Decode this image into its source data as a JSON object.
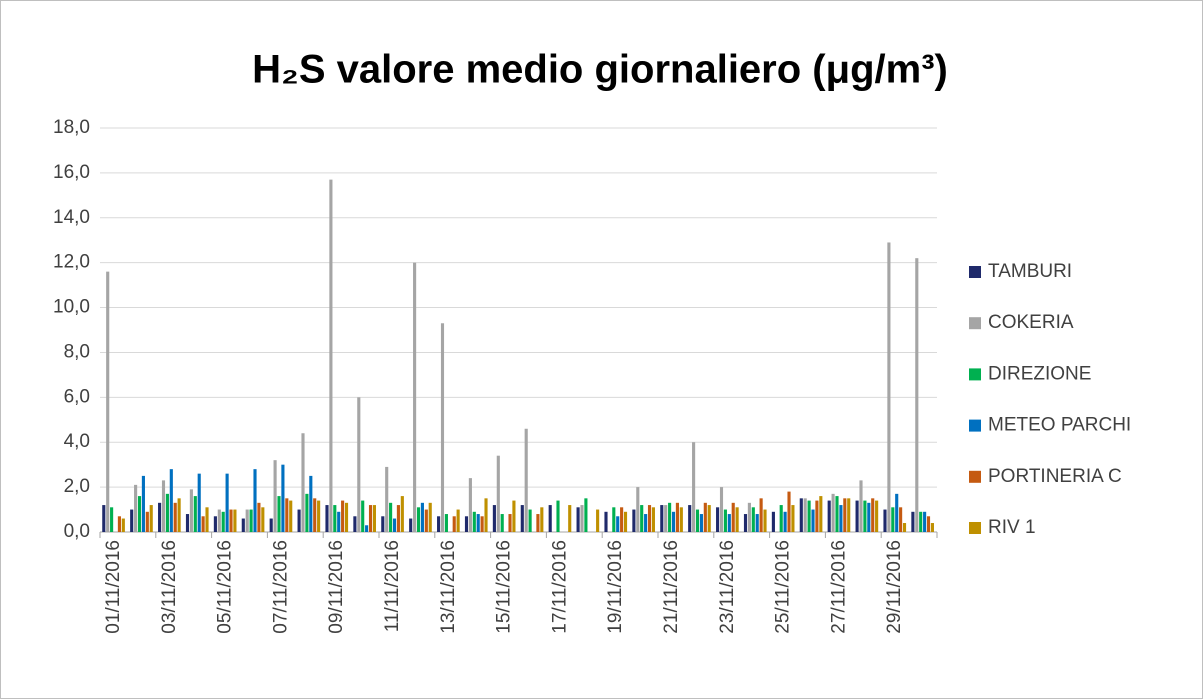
{
  "chart_data": {
    "type": "bar",
    "title": "H₂S valore medio giornaliero (μg/m³)",
    "categories": [
      "01/11/2016",
      null,
      "03/11/2016",
      null,
      "05/11/2016",
      null,
      "07/11/2016",
      null,
      "09/11/2016",
      null,
      "11/11/2016",
      null,
      "13/11/2016",
      null,
      "15/11/2016",
      null,
      "17/11/2016",
      null,
      "19/11/2016",
      null,
      "21/11/2016",
      null,
      "23/11/2016",
      null,
      "25/11/2016",
      null,
      "27/11/2016",
      null,
      "29/11/2016",
      null
    ],
    "series": [
      {
        "name": "TAMBURI",
        "color": "#1f2a6b",
        "values": [
          1.2,
          1.0,
          1.3,
          0.8,
          0.7,
          0.6,
          0.6,
          1.0,
          1.2,
          0.7,
          0.7,
          0.6,
          0.7,
          0.7,
          1.2,
          1.2,
          1.2,
          1.1,
          0.9,
          1.0,
          1.2,
          1.2,
          1.1,
          0.8,
          0.9,
          1.5,
          1.4,
          1.4,
          1.0,
          0.9
        ]
      },
      {
        "name": "COKERIA",
        "color": "#a5a5a5",
        "values": [
          11.6,
          2.1,
          2.3,
          1.9,
          1.0,
          1.0,
          3.2,
          4.4,
          15.7,
          6.0,
          2.9,
          12.0,
          9.3,
          2.4,
          3.4,
          4.6,
          null,
          1.2,
          null,
          2.0,
          1.2,
          4.0,
          2.0,
          1.3,
          null,
          1.5,
          1.7,
          2.3,
          12.9,
          12.2
        ]
      },
      {
        "name": "DIREZIONE",
        "color": "#00b050",
        "values": [
          1.1,
          1.6,
          1.7,
          1.6,
          0.9,
          1.0,
          1.6,
          1.7,
          1.2,
          1.4,
          1.3,
          1.1,
          0.8,
          0.9,
          0.8,
          1.0,
          1.4,
          1.5,
          1.1,
          1.2,
          1.3,
          1.0,
          1.0,
          1.1,
          1.2,
          1.4,
          1.6,
          1.4,
          1.1,
          0.9
        ]
      },
      {
        "name": "METEO PARCHI",
        "color": "#0070c0",
        "values": [
          null,
          2.5,
          2.8,
          2.6,
          2.6,
          2.8,
          3.0,
          2.5,
          0.9,
          0.3,
          0.6,
          1.3,
          null,
          0.8,
          null,
          null,
          null,
          null,
          0.7,
          0.8,
          0.9,
          0.8,
          0.8,
          0.8,
          0.9,
          1.0,
          1.2,
          1.3,
          1.7,
          0.9
        ]
      },
      {
        "name": "PORTINERIA C",
        "color": "#c55a11",
        "values": [
          0.7,
          0.9,
          1.3,
          0.7,
          1.0,
          1.3,
          1.5,
          1.5,
          1.4,
          1.2,
          1.2,
          1.0,
          0.7,
          0.7,
          0.8,
          0.8,
          null,
          null,
          1.1,
          1.2,
          1.3,
          1.3,
          1.3,
          1.5,
          1.8,
          1.4,
          1.5,
          1.5,
          1.1,
          0.7
        ]
      },
      {
        "name": "RIV 1",
        "color": "#bf9000",
        "values": [
          0.6,
          1.2,
          1.5,
          1.1,
          1.0,
          1.1,
          1.4,
          1.4,
          1.3,
          1.2,
          1.6,
          1.3,
          1.0,
          1.5,
          1.4,
          1.1,
          1.2,
          1.0,
          0.9,
          1.1,
          1.1,
          1.2,
          1.1,
          1.0,
          1.2,
          1.6,
          1.5,
          1.4,
          0.4,
          0.4
        ]
      }
    ],
    "ylim": [
      0,
      18
    ],
    "yticks": [
      {
        "value": 0,
        "label": "0,0"
      },
      {
        "value": 2,
        "label": "2,0"
      },
      {
        "value": 4,
        "label": "4,0"
      },
      {
        "value": 6,
        "label": "6,0"
      },
      {
        "value": 8,
        "label": "8,0"
      },
      {
        "value": 10,
        "label": "10,0"
      },
      {
        "value": 12,
        "label": "12,0"
      },
      {
        "value": 14,
        "label": "14,0"
      },
      {
        "value": 16,
        "label": "16,0"
      },
      {
        "value": 18,
        "label": "18,0"
      }
    ],
    "grid": true,
    "legend": "right"
  }
}
